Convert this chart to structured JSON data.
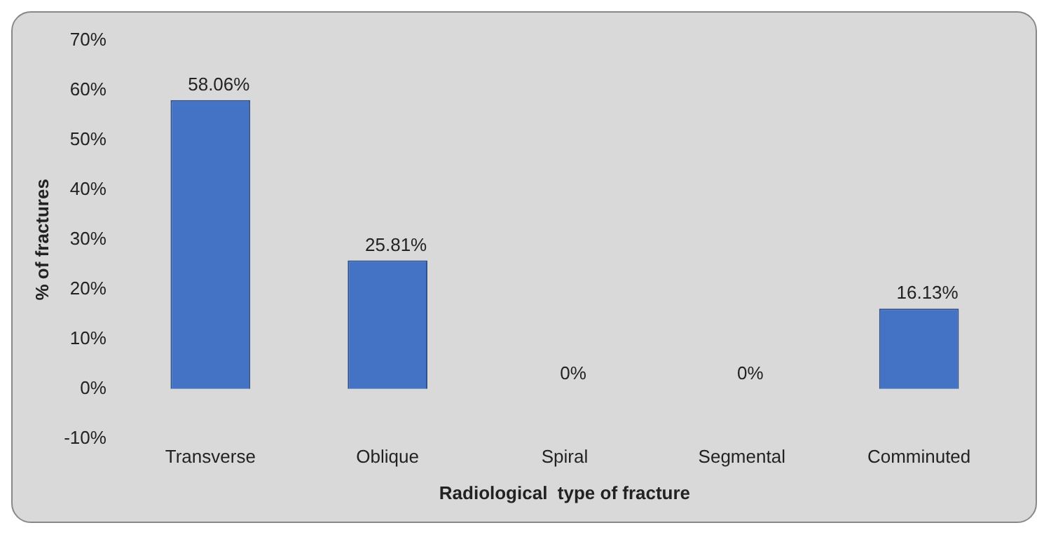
{
  "chart_data": {
    "type": "bar",
    "xlabel": "Radiological  type of fracture",
    "ylabel": "% of fractures",
    "categories": [
      "Transverse",
      "Oblique",
      "Spiral",
      "Segmental",
      "Comminuted"
    ],
    "values": [
      58.06,
      25.81,
      0,
      0,
      16.13
    ],
    "value_labels": [
      "58.06%",
      "25.81%",
      "0%",
      "0%",
      "16.13%"
    ],
    "color": "#4472c4",
    "ylim": [
      -10,
      70
    ],
    "yticks": [
      {
        "value": -10,
        "label": "-10%"
      },
      {
        "value": 0,
        "label": "0%"
      },
      {
        "value": 10,
        "label": "10%"
      },
      {
        "value": 20,
        "label": "20%"
      },
      {
        "value": 30,
        "label": "30%"
      },
      {
        "value": 40,
        "label": "40%"
      },
      {
        "value": 50,
        "label": "50%"
      },
      {
        "value": 60,
        "label": "60%"
      },
      {
        "value": 70,
        "label": "70%"
      }
    ],
    "grid": false,
    "legend": false
  }
}
